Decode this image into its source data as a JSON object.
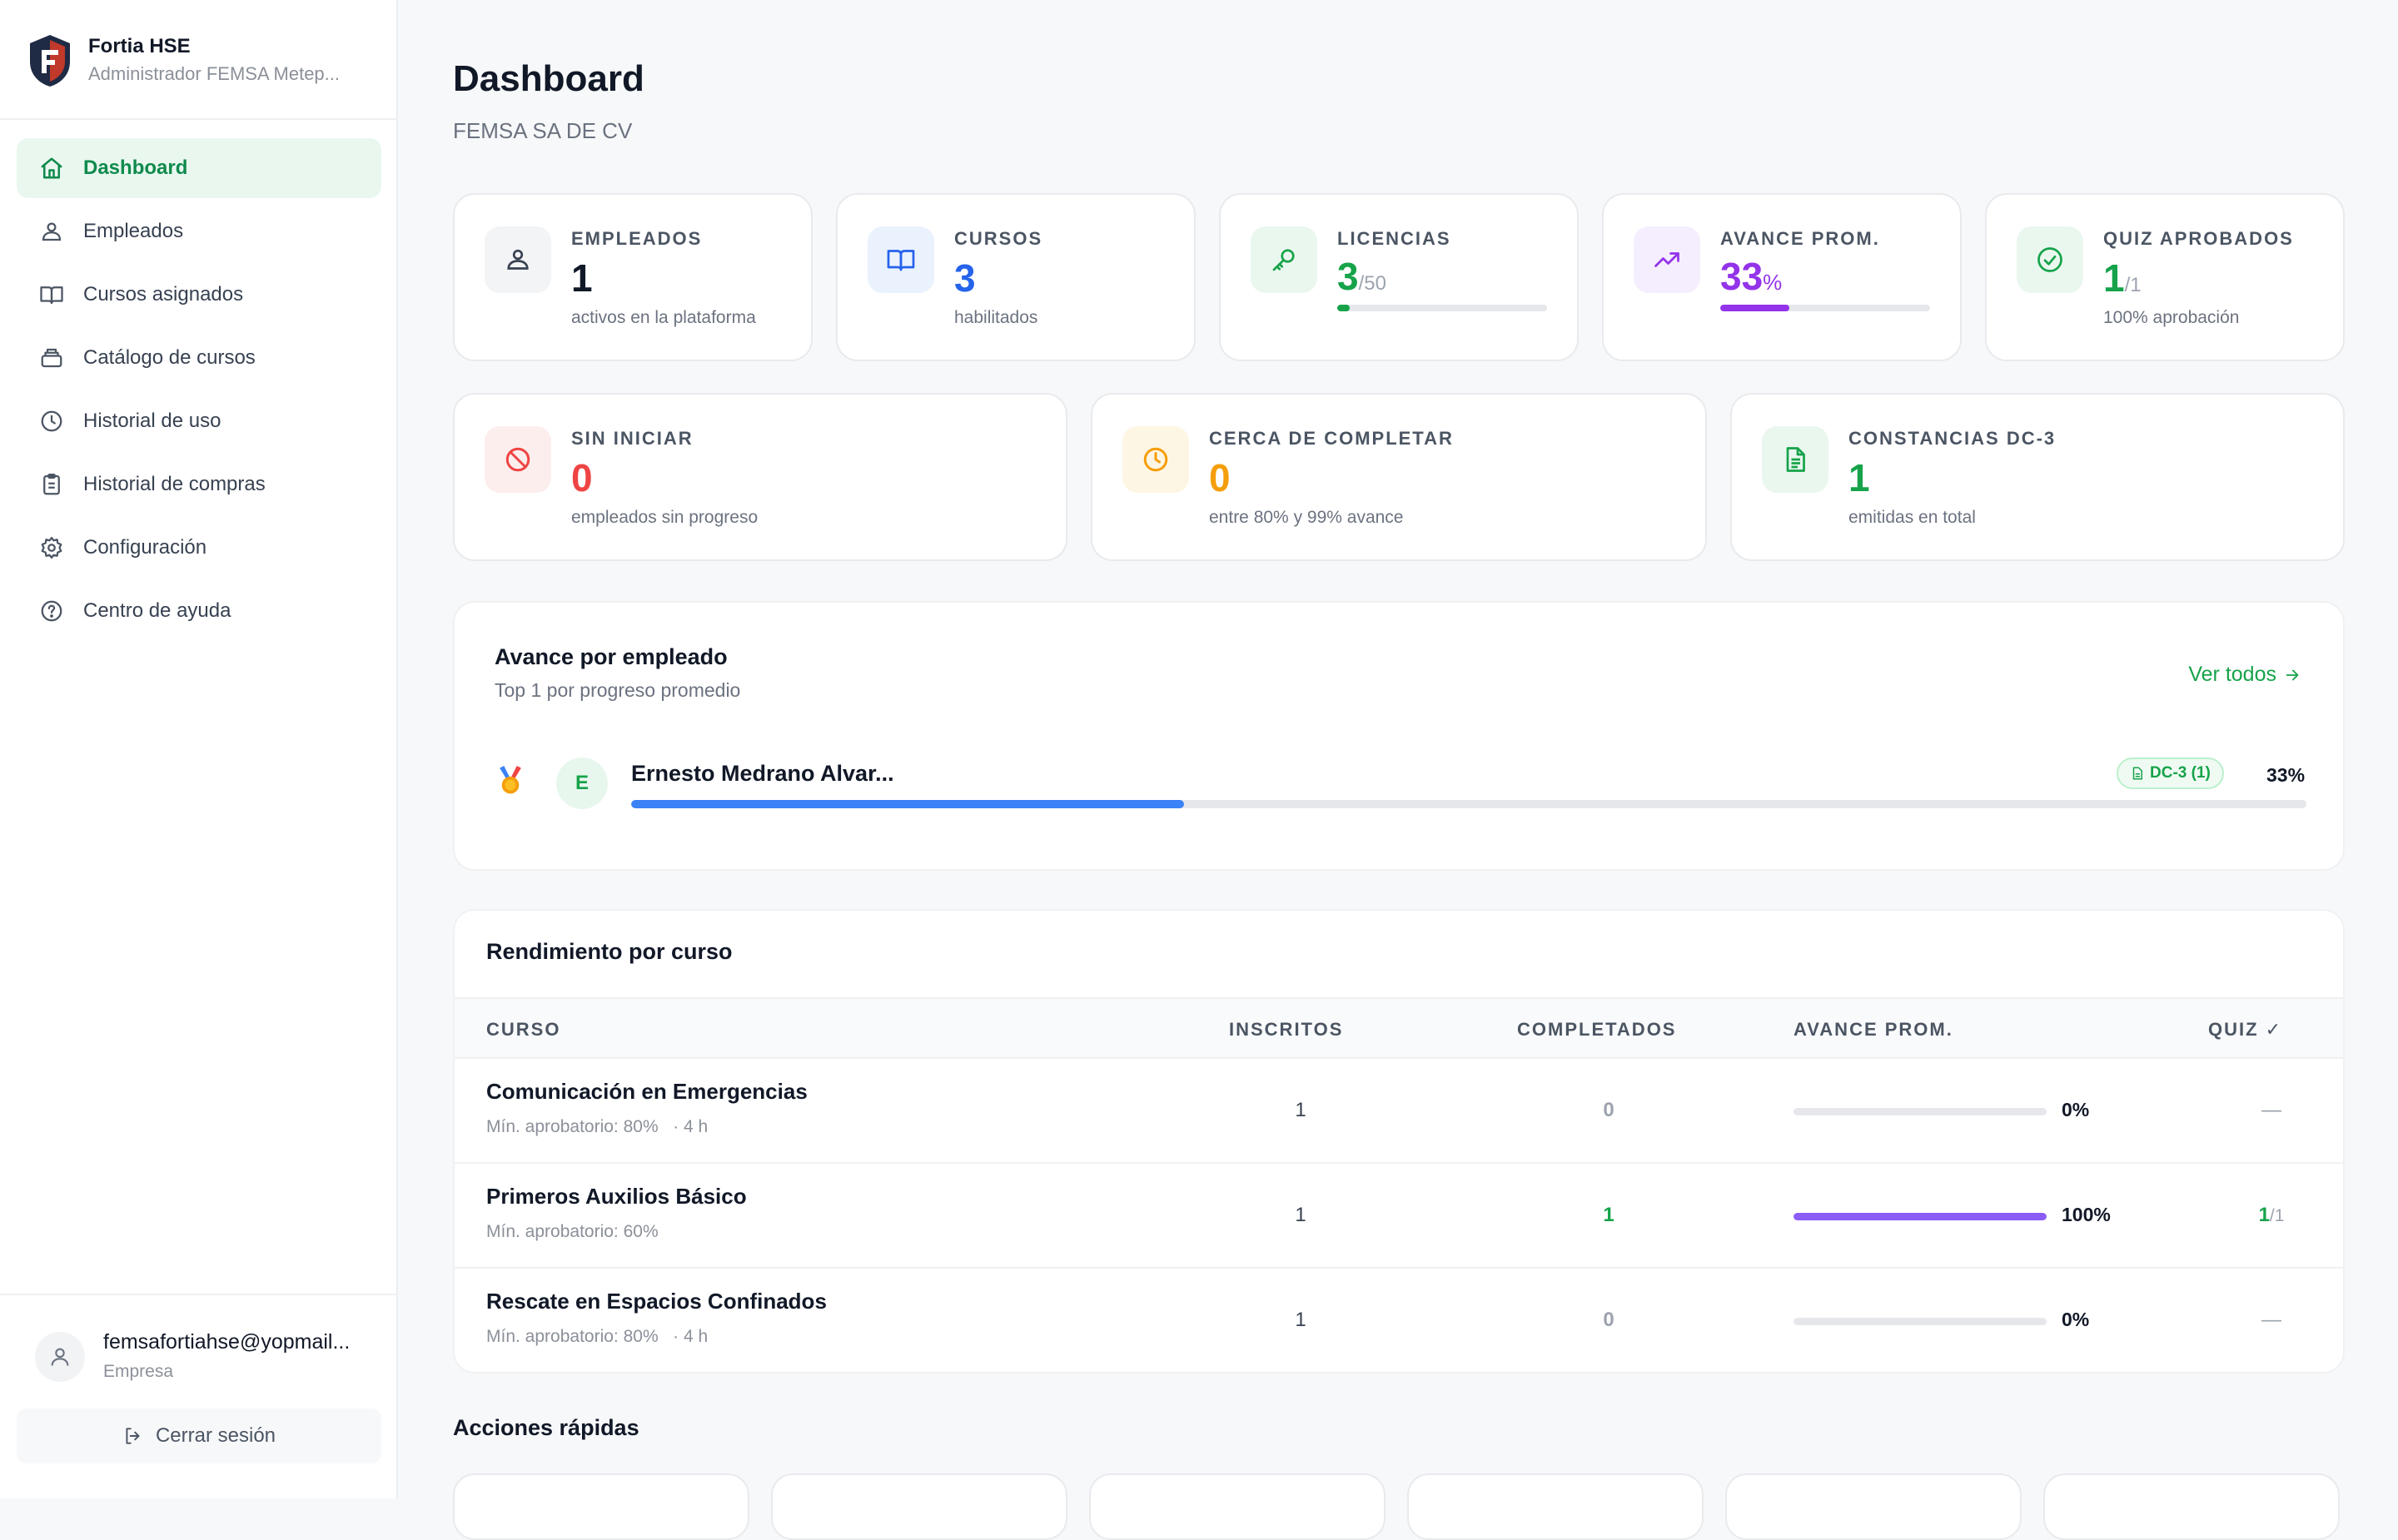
{
  "brand": {
    "title": "Fortia HSE",
    "subtitle": "Administrador FEMSA Metep...",
    "colors": {
      "primary": "#0f8a4c",
      "logo_dark": "#1f2a44",
      "logo_red": "#c0392b"
    }
  },
  "nav": {
    "items": [
      {
        "label": "Dashboard",
        "icon": "home-icon",
        "active": true
      },
      {
        "label": "Empleados",
        "icon": "users-icon"
      },
      {
        "label": "Cursos asignados",
        "icon": "book-icon"
      },
      {
        "label": "Catálogo de cursos",
        "icon": "catalog-icon"
      },
      {
        "label": "Historial de uso",
        "icon": "clock-icon"
      },
      {
        "label": "Historial de compras",
        "icon": "clipboard-icon"
      },
      {
        "label": "Configuración",
        "icon": "gear-icon"
      },
      {
        "label": "Centro de ayuda",
        "icon": "help-icon"
      }
    ]
  },
  "user": {
    "email": "femsafortiahse@yopmail...",
    "role": "Empresa",
    "logout_label": "Cerrar sesión"
  },
  "header": {
    "title": "Dashboard",
    "subtitle": "FEMSA SA DE CV"
  },
  "stats_top": [
    {
      "label": "EMPLEADOS",
      "value": "1",
      "desc": "activos en la plataforma",
      "icon": "people-icon",
      "color": "#111827",
      "bg": "#f3f4f6"
    },
    {
      "label": "CURSOS",
      "value": "3",
      "desc": "habilitados",
      "icon": "book-icon",
      "color": "#2563eb",
      "bg": "#eaf2fe"
    },
    {
      "label": "LICENCIAS",
      "value": "3",
      "of": "/50",
      "progress": 0.06,
      "icon": "key-icon",
      "color": "#16a34a",
      "bg": "#eaf7ef"
    },
    {
      "label": "AVANCE PROM.",
      "value": "33",
      "pct": "%",
      "progress": 0.33,
      "icon": "trending-up-icon",
      "color": "#9333ea",
      "bg": "#f5eefe"
    },
    {
      "label": "QUIZ APROBADOS",
      "value": "1",
      "of": "/1",
      "desc": "100% aprobación",
      "icon": "check-circle-icon",
      "color": "#16a34a",
      "bg": "#eaf7ef"
    }
  ],
  "stats_mid": [
    {
      "label": "SIN INICIAR",
      "value": "0",
      "desc": "empleados sin progreso",
      "icon": "ban-icon",
      "color": "#ef4444",
      "bg": "#fdeeee"
    },
    {
      "label": "CERCA DE COMPLETAR",
      "value": "0",
      "desc": "entre 80% y 99% avance",
      "icon": "clock-icon",
      "color": "#f59e0b",
      "bg": "#fef6e4"
    },
    {
      "label": "CONSTANCIAS DC-3",
      "value": "1",
      "desc": "emitidas en total",
      "icon": "document-icon",
      "color": "#16a34a",
      "bg": "#eaf7ef"
    }
  ],
  "avance": {
    "title": "Avance por empleado",
    "subtitle": "Top 1 por progreso promedio",
    "ver_todos": "Ver todos",
    "employees": [
      {
        "rank_icon": "medal-icon",
        "initial": "E",
        "name": "Ernesto Medrano Alvar...",
        "badge": "DC-3 (1)",
        "progress": 0.33,
        "pct": "33%"
      }
    ]
  },
  "rendimiento": {
    "title": "Rendimiento por curso",
    "columns": [
      "CURSO",
      "INSCRITOS",
      "COMPLETADOS",
      "AVANCE PROM.",
      "QUIZ ✓"
    ],
    "rows": [
      {
        "name": "Comunicación en Emergencias",
        "meta": "Mín. aprobatorio: 80%   · 4 h",
        "inscritos": "1",
        "completados": "0",
        "progress": 0.0,
        "pct": "0%",
        "quiz": "—"
      },
      {
        "name": "Primeros Auxilios Básico",
        "meta": "Mín. aprobatorio: 60%",
        "inscritos": "1",
        "completados": "1",
        "progress": 1.0,
        "pct": "100%",
        "quiz_main": "1",
        "quiz_of": "/1"
      },
      {
        "name": "Rescate en Espacios Confinados",
        "meta": "Mín. aprobatorio: 80%   · 4 h",
        "inscritos": "1",
        "completados": "0",
        "progress": 0.0,
        "pct": "0%",
        "quiz": "—"
      }
    ]
  },
  "quick": {
    "title": "Acciones rápidas"
  }
}
